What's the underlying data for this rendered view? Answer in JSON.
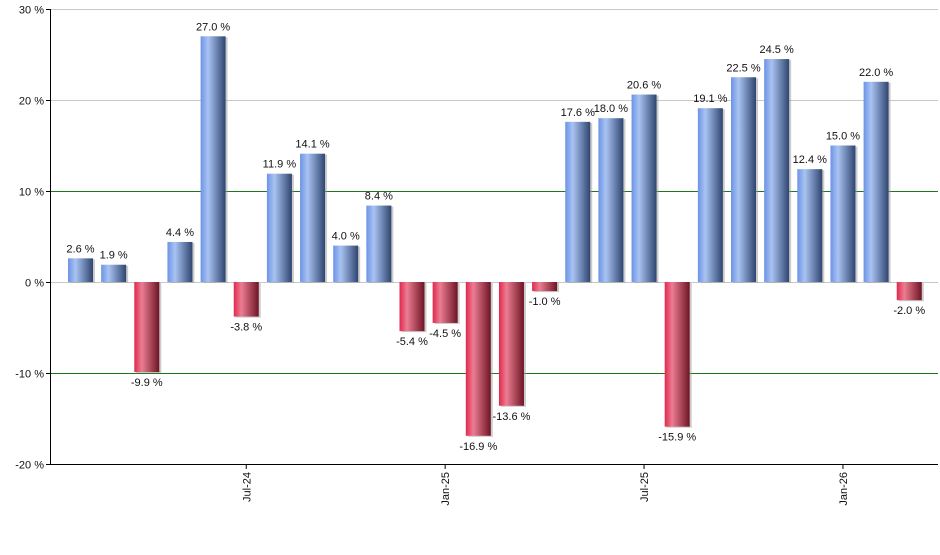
{
  "chart_data": {
    "type": "bar",
    "title": "",
    "xlabel": "",
    "ylabel": "",
    "ylim": [
      -20,
      30
    ],
    "yticks": [
      30,
      20,
      10,
      0,
      -10,
      -20
    ],
    "ytick_labels": [
      "30 %",
      "20 %",
      "10 %",
      "0 %",
      "-10 %",
      "-20 %"
    ],
    "x": [
      "Feb-24",
      "Mar-24",
      "Apr-24",
      "May-24",
      "Jun-24",
      "Jul-24",
      "Aug-24",
      "Sep-24",
      "Oct-24",
      "Nov-24",
      "Dec-24",
      "Jan-25",
      "Feb-25",
      "Mar-25",
      "Apr-25",
      "May-25",
      "Jun-25",
      "Jul-25",
      "Aug-25",
      "Sep-25",
      "Oct-25",
      "Nov-25",
      "Dec-25",
      "Jan-26",
      "Feb-26",
      "Mar-26"
    ],
    "xtick_labels": [
      "Jul-24",
      "Jan-25",
      "Jul-25",
      "Jan-26"
    ],
    "values": [
      2.6,
      1.9,
      -9.9,
      4.4,
      27.0,
      -3.8,
      11.9,
      14.1,
      4.0,
      8.4,
      -5.4,
      -4.5,
      -16.9,
      -13.6,
      -1.0,
      17.6,
      18.0,
      20.6,
      -15.9,
      19.1,
      22.5,
      24.5,
      12.4,
      15.0,
      22.0,
      -2.0
    ],
    "value_labels": [
      "2.6 %",
      "1.9 %",
      "-9.9 %",
      "4.4 %",
      "27.0 %",
      "-3.8 %",
      "11.9 %",
      "14.1 %",
      "4.0 %",
      "8.4 %",
      "-5.4 %",
      "-4.5 %",
      "-16.9 %",
      "-13.6 %",
      "-1.0 %",
      "17.6 %",
      "18.0 %",
      "20.6 %",
      "-15.9 %",
      "19.1 %",
      "22.5 %",
      "24.5 %",
      "12.4 %",
      "15.0 %",
      "22.0 %",
      "-2.0 %"
    ],
    "grid": true,
    "colors": {
      "positive": "#6f93d8",
      "negative": "#c8284a",
      "grid": "#c8c8c8",
      "reference_lines": "#1a7a1a"
    }
  }
}
